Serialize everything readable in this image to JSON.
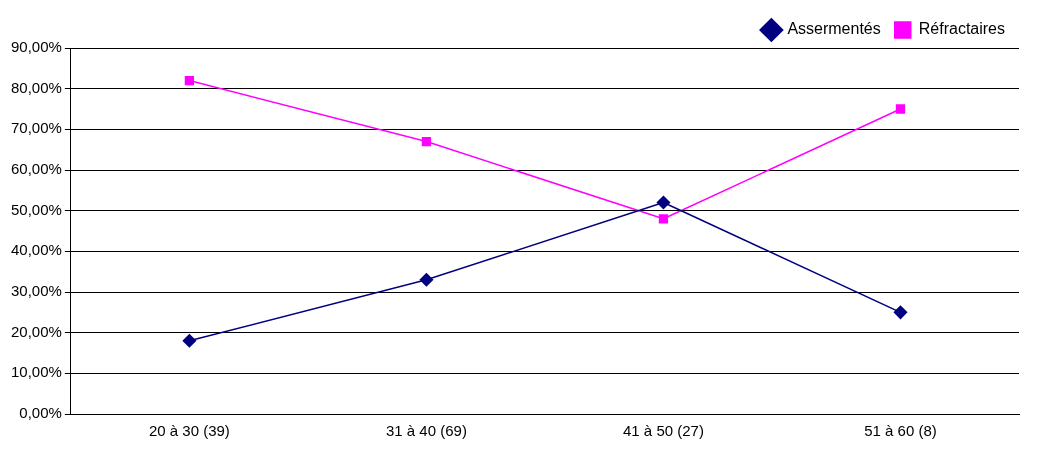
{
  "chart_data": {
    "type": "line",
    "categories": [
      "20 à 30 (39)",
      "31 à 40 (69)",
      "41 à 50 (27)",
      "51 à 60 (8)"
    ],
    "series": [
      {
        "name": "Assermentés",
        "color": "#000080",
        "values": [
          18,
          33,
          52,
          25
        ],
        "marker": "diamond"
      },
      {
        "name": "Réfractaires",
        "color": "#ff00ff",
        "values": [
          82,
          67,
          48,
          75
        ],
        "marker": "square"
      }
    ],
    "ylim": [
      0,
      90
    ],
    "yticks": [
      {
        "value": 0,
        "label": "0,00%"
      },
      {
        "value": 10,
        "label": "10,00%"
      },
      {
        "value": 20,
        "label": "20,00%"
      },
      {
        "value": 30,
        "label": "30,00%"
      },
      {
        "value": 40,
        "label": "40,00%"
      },
      {
        "value": 50,
        "label": "50,00%"
      },
      {
        "value": 60,
        "label": "60,00%"
      },
      {
        "value": 70,
        "label": "70,00%"
      },
      {
        "value": 80,
        "label": "80,00%"
      },
      {
        "value": 90,
        "label": "90,00%"
      }
    ],
    "grid": "y",
    "legend": "top right",
    "line_style": "solid"
  }
}
